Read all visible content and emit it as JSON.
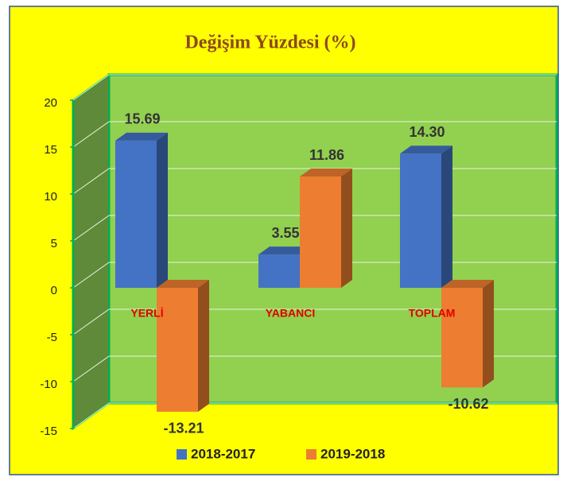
{
  "chart_data": {
    "type": "bar3d",
    "title": "Değişim Yüzdesi (%)",
    "categories": [
      "YERLİ",
      "YABANCI",
      "TOPLAM"
    ],
    "series": [
      {
        "name": "2018-2017",
        "color": "#4472c4",
        "values": [
          15.69,
          3.55,
          14.3
        ],
        "value_labels": [
          "15.69",
          "3.55",
          "14.30"
        ]
      },
      {
        "name": "2019-2018",
        "color": "#ed7d31",
        "values": [
          -13.21,
          11.86,
          -10.62
        ],
        "value_labels": [
          "-13.21",
          "11.86",
          "-10.62"
        ]
      }
    ],
    "ylim": [
      -15,
      20
    ],
    "yticks": [
      -15,
      -10,
      -5,
      0,
      5,
      10,
      15,
      20
    ],
    "grid": true,
    "legend": "bottom"
  }
}
